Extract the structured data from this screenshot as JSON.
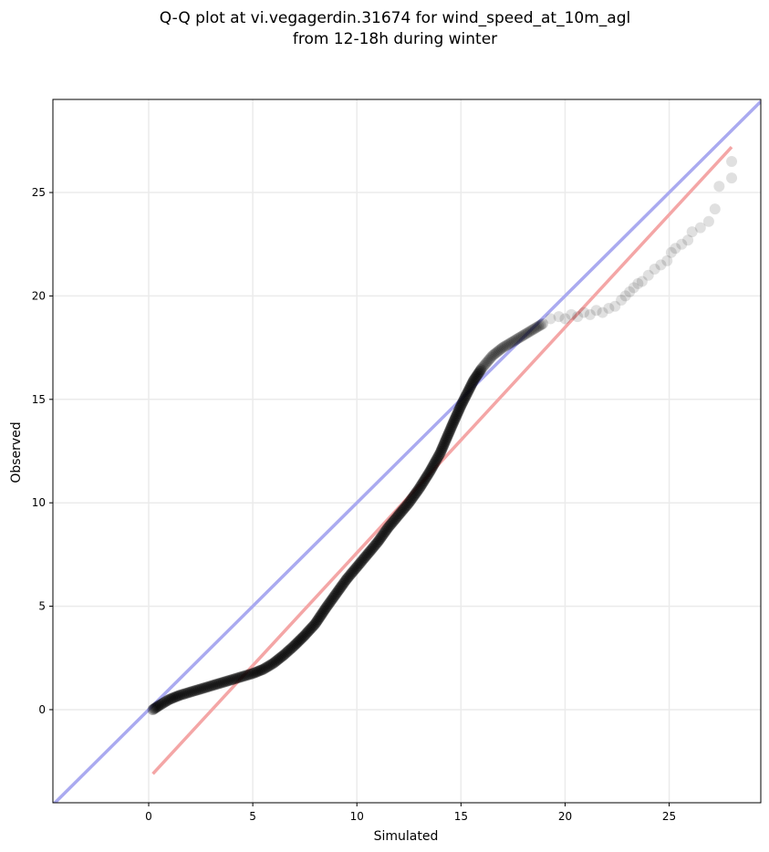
{
  "chart_data": {
    "type": "scatter",
    "title_line1": "Q-Q plot at vi.vegagerdin.31674 for wind_speed_at_10m_agl",
    "title_line2": "from 12-18h during winter",
    "xlabel": "Simulated",
    "ylabel": "Observed",
    "xlim": [
      -4.6,
      29.4
    ],
    "ylim": [
      -4.5,
      29.5
    ],
    "xticks": [
      0,
      5,
      10,
      15,
      20,
      25
    ],
    "yticks": [
      0,
      5,
      10,
      15,
      20,
      25
    ],
    "grid": true,
    "colors": {
      "points": "#000000",
      "identity_line": "#aaaaf0",
      "fit_line": "#f4a6a6",
      "grid": "#ebebeb"
    },
    "identity_line": {
      "x": [
        -4.6,
        29.4
      ],
      "y": [
        -4.6,
        29.4
      ]
    },
    "fit_line": {
      "x": [
        0.2,
        28.0
      ],
      "y": [
        -3.1,
        27.2
      ]
    },
    "curve_points": {
      "x": [
        0.2,
        0.5,
        1.0,
        1.5,
        2.0,
        2.5,
        3.0,
        3.5,
        4.0,
        4.5,
        5.0,
        5.5,
        6.0,
        6.5,
        7.0,
        7.5,
        8.0,
        8.5,
        9.0,
        9.5,
        10.0,
        10.5,
        11.0,
        11.5,
        12.0,
        12.5,
        13.0,
        13.5,
        14.0,
        14.3,
        14.6,
        15.0,
        15.3,
        15.6,
        16.0,
        16.5,
        17.0,
        17.5,
        18.0,
        18.5,
        19.0
      ],
      "y": [
        0.0,
        0.2,
        0.5,
        0.7,
        0.85,
        1.0,
        1.15,
        1.3,
        1.45,
        1.6,
        1.75,
        1.95,
        2.25,
        2.65,
        3.1,
        3.6,
        4.15,
        4.9,
        5.6,
        6.3,
        6.9,
        7.5,
        8.1,
        8.8,
        9.4,
        10.0,
        10.7,
        11.5,
        12.4,
        13.1,
        13.8,
        14.7,
        15.3,
        15.9,
        16.5,
        17.1,
        17.5,
        17.8,
        18.1,
        18.4,
        18.7
      ]
    },
    "tail_points": {
      "x": [
        19.3,
        19.7,
        20.0,
        20.3,
        20.6,
        20.9,
        21.2,
        21.5,
        21.8,
        22.1,
        22.4,
        22.7,
        22.9,
        23.1,
        23.3,
        23.5,
        23.7,
        24.0,
        24.3,
        24.6,
        24.9,
        25.1,
        25.3,
        25.6,
        25.9,
        26.1,
        26.5,
        26.9,
        27.2,
        27.4,
        28.0,
        28.0
      ],
      "y": [
        18.9,
        19.0,
        18.9,
        19.1,
        19.0,
        19.2,
        19.1,
        19.3,
        19.2,
        19.4,
        19.5,
        19.8,
        20.0,
        20.2,
        20.4,
        20.6,
        20.7,
        21.0,
        21.3,
        21.5,
        21.7,
        22.1,
        22.3,
        22.5,
        22.7,
        23.1,
        23.3,
        23.6,
        24.2,
        25.3,
        25.7,
        26.5
      ]
    }
  }
}
